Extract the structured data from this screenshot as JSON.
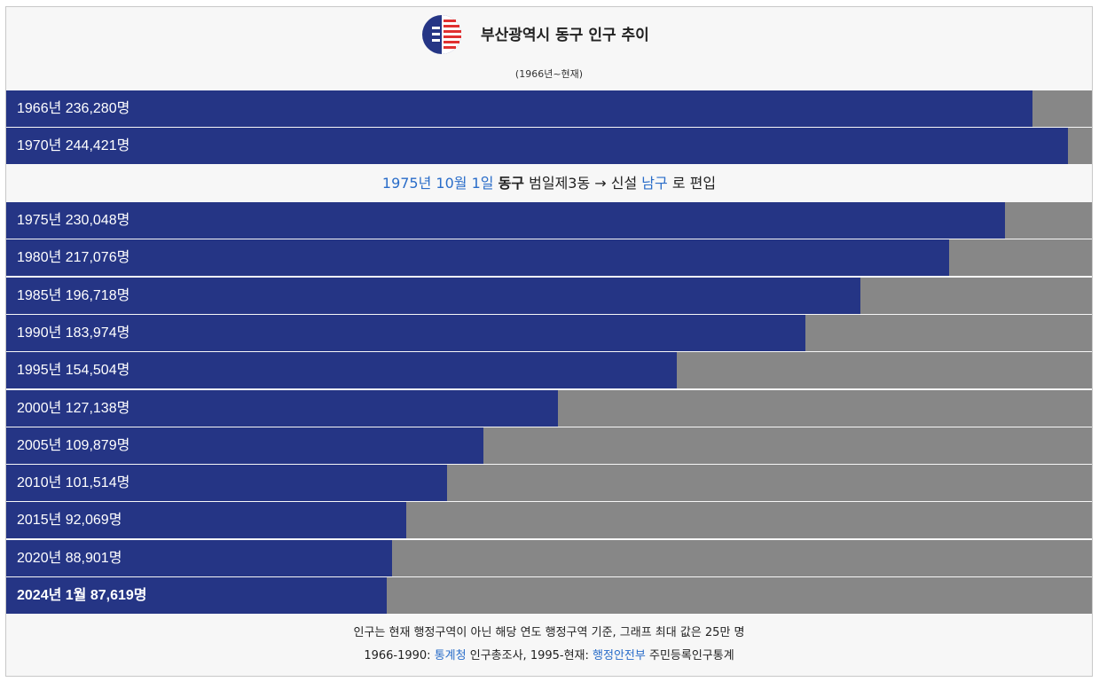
{
  "title": "부산광역시 동구 인구 추이",
  "subtitle": "(1966년~현재)",
  "logo": {
    "icon": "busan-city-emblem-icon",
    "colors": [
      "#253585",
      "#e03030"
    ]
  },
  "note": {
    "date": "1975년 10월 1일",
    "district": "동구",
    "text1": "범일제3동 → 신설",
    "target": "남구",
    "text2": "로 편입"
  },
  "footer": {
    "line1": "인구는 현재 행정구역이 아닌 해당 연도 행정구역 기준, 그래프 최대 값은 25만 명",
    "line2_a": "1966-1990:",
    "line2_link1": "통계청",
    "line2_b": "인구총조사, 1995-현재:",
    "line2_link2": "행정안전부",
    "line2_c": "주민등록인구통계"
  },
  "colors": {
    "bar": "#253585",
    "track": "#878787",
    "link": "#2a6dc9"
  },
  "chart_data": {
    "type": "bar",
    "orientation": "horizontal",
    "max_value": 250000,
    "categories": [
      "1966년",
      "1970년",
      "1975년",
      "1980년",
      "1985년",
      "1990년",
      "1995년",
      "2000년",
      "2005년",
      "2010년",
      "2015년",
      "2020년",
      "2024년 1월"
    ],
    "values": [
      236280,
      244421,
      230048,
      217076,
      196718,
      183974,
      154504,
      127138,
      109879,
      101514,
      92069,
      88901,
      87619
    ],
    "labels": [
      "1966년 236,280명",
      "1970년 244,421명",
      "1975년 230,048명",
      "1980년 217,076명",
      "1985년 196,718명",
      "1990년 183,974명",
      "1995년 154,504명",
      "2000년 127,138명",
      "2005년 109,879명",
      "2010년 101,514명",
      "2015년 92,069명",
      "2020년 88,901명",
      "2024년 1월 87,619명"
    ]
  }
}
